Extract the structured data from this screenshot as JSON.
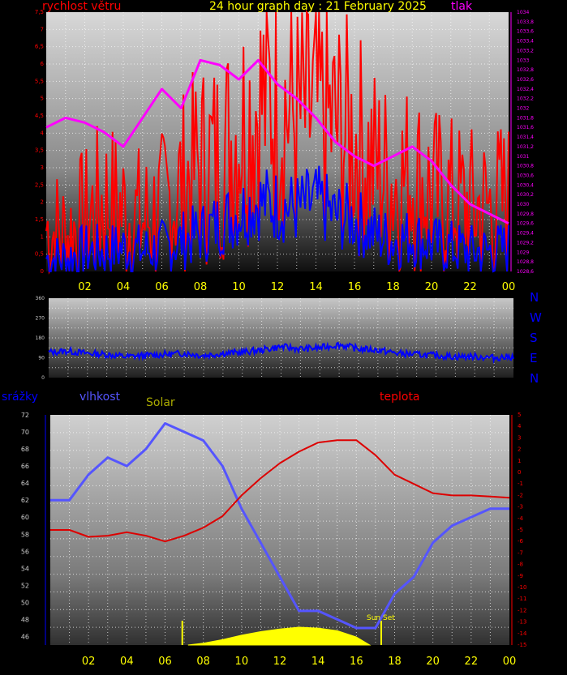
{
  "header": {
    "left_label": "rychlost větru",
    "title": "24 hour graph day : 21 February 2025",
    "right_label": "tlak"
  },
  "compass": [
    "N",
    "W",
    "S",
    "E",
    "N"
  ],
  "bottom_labels": {
    "precip": "srážky",
    "humidity": "vlhkost",
    "solar": "Solar",
    "temp": "teplota",
    "sunset": "Sun Set"
  },
  "colors": {
    "wind": "#ff0000",
    "gust": "#0000ff",
    "pressure": "#ff00ff",
    "direction": "#0000ff",
    "humidity": "#5555ff",
    "temperature": "#dd0000",
    "solar": "#ffff00",
    "sunset_marker": "#ffff00",
    "hour_labels": "#ffff00",
    "left_axis": "#ff0000",
    "right_axis_pressure": "#ff00ff",
    "right_axis_temp": "#ff0000"
  },
  "chart_data": [
    {
      "type": "line",
      "id": "wind_pressure",
      "x_tick_labels": [
        "02",
        "04",
        "06",
        "08",
        "10",
        "12",
        "14",
        "16",
        "18",
        "20",
        "22",
        "00"
      ],
      "y_left_ticks": [
        "0",
        "0,5",
        "1",
        "1,5",
        "2",
        "2,5",
        "3",
        "3,5",
        "4",
        "4,5",
        "5",
        "5,5",
        "6",
        "6,5",
        "7",
        "7,5"
      ],
      "y_left_range": [
        0,
        7.5
      ],
      "y_right_ticks": [
        "1028,6",
        "1028,8",
        "1029",
        "1029,2",
        "1029,4",
        "1029,6",
        "1029,8",
        "1030",
        "1030,2",
        "1030,4",
        "1030,6",
        "1030,8",
        "1031",
        "1031,2",
        "1031,4",
        "1031,6",
        "1031,8",
        "1032",
        "1032,2",
        "1032,4",
        "1032,6",
        "1032,8",
        "1033",
        "1033,2",
        "1033,4",
        "1033,6",
        "1033,8",
        "1034"
      ],
      "y_right_range": [
        1028.6,
        1034
      ],
      "grid": true,
      "series": [
        {
          "name": "rychlost větru",
          "axis": "left",
          "x": [
            0,
            1,
            2,
            3,
            4,
            5,
            6,
            7,
            8,
            9,
            10,
            11,
            12,
            13,
            14,
            15,
            16,
            17,
            18,
            19,
            20,
            21,
            22,
            23,
            24
          ],
          "values": [
            1.0,
            0.8,
            1.2,
            1.8,
            1.5,
            1.2,
            1.5,
            2.2,
            2.8,
            3.0,
            3.8,
            4.5,
            4.6,
            4.0,
            4.2,
            3.8,
            3.5,
            2.8,
            2.3,
            2.5,
            2.0,
            1.8,
            1.6,
            1.6,
            1.8
          ]
        },
        {
          "name": "gust",
          "axis": "left",
          "x": [
            0,
            1,
            2,
            3,
            4,
            5,
            6,
            7,
            8,
            9,
            10,
            11,
            12,
            13,
            14,
            15,
            16,
            17,
            18,
            19,
            20,
            21,
            22,
            23,
            24
          ],
          "values": [
            0.3,
            0.3,
            0.5,
            0.5,
            0.6,
            0.5,
            0.6,
            0.8,
            1.0,
            1.3,
            1.6,
            1.9,
            1.8,
            1.7,
            1.9,
            1.5,
            1.4,
            1.0,
            0.8,
            0.9,
            0.7,
            0.6,
            0.5,
            0.5,
            0.6
          ]
        },
        {
          "name": "tlak",
          "axis": "right",
          "x": [
            0,
            1,
            2,
            3,
            4,
            5,
            6,
            7,
            8,
            9,
            10,
            11,
            12,
            13,
            14,
            15,
            16,
            17,
            18,
            19,
            20,
            21,
            22,
            23,
            24
          ],
          "values": [
            1031.6,
            1031.8,
            1031.7,
            1031.5,
            1031.2,
            1031.8,
            1032.4,
            1032.0,
            1033.0,
            1032.9,
            1032.6,
            1033.0,
            1032.5,
            1032.2,
            1031.8,
            1031.3,
            1031.0,
            1030.8,
            1031.0,
            1031.2,
            1030.9,
            1030.4,
            1030.0,
            1029.8,
            1029.6
          ]
        }
      ]
    },
    {
      "type": "line",
      "id": "wind_direction",
      "x_tick_labels": [],
      "y_ticks": [
        "0",
        "90",
        "180",
        "270",
        "360"
      ],
      "y_range": [
        0,
        360
      ],
      "grid": true,
      "series": [
        {
          "name": "direction",
          "x": [
            0,
            1,
            2,
            3,
            4,
            5,
            6,
            7,
            8,
            9,
            10,
            11,
            12,
            13,
            14,
            15,
            16,
            17,
            18,
            19,
            20,
            21,
            22,
            23,
            24
          ],
          "values": [
            115,
            120,
            110,
            105,
            95,
            100,
            105,
            110,
            100,
            110,
            115,
            125,
            140,
            130,
            135,
            150,
            130,
            125,
            110,
            105,
            100,
            95,
            95,
            90,
            95
          ]
        }
      ]
    },
    {
      "type": "line",
      "id": "humidity_temp",
      "x_tick_labels": [
        "02",
        "04",
        "06",
        "08",
        "10",
        "12",
        "14",
        "16",
        "18",
        "20",
        "22",
        "00"
      ],
      "y_left_ticks": [
        "46",
        "48",
        "50",
        "52",
        "54",
        "56",
        "58",
        "60",
        "62",
        "64",
        "66",
        "68",
        "70",
        "72"
      ],
      "y_left_range": [
        45,
        72
      ],
      "y_right_ticks": [
        "5",
        "4",
        "3",
        "2",
        "1",
        "0",
        "-1",
        "-2",
        "-3",
        "-4",
        "-5",
        "-6",
        "-7",
        "-8",
        "-9",
        "-10",
        "-11",
        "-12",
        "-13",
        "-14",
        "-15"
      ],
      "y_right_range": [
        -15,
        5
      ],
      "grid": true,
      "series": [
        {
          "name": "vlhkost",
          "axis": "left",
          "x": [
            0,
            1,
            2,
            3,
            4,
            5,
            6,
            7,
            8,
            9,
            10,
            11,
            12,
            13,
            14,
            15,
            16,
            17,
            18,
            19,
            20,
            21,
            22,
            23,
            24
          ],
          "values": [
            62,
            62,
            65,
            67,
            66,
            68,
            71,
            70,
            69,
            66,
            61,
            57,
            53,
            49,
            49,
            48,
            47,
            47,
            51,
            53,
            57,
            59,
            60,
            61,
            61
          ]
        },
        {
          "name": "teplota",
          "axis": "right",
          "x": [
            0,
            1,
            2,
            3,
            4,
            5,
            6,
            7,
            8,
            9,
            10,
            11,
            12,
            13,
            14,
            15,
            16,
            17,
            18,
            19,
            20,
            21,
            22,
            23,
            24
          ],
          "values": [
            -5.0,
            -5.0,
            -5.6,
            -5.5,
            -5.2,
            -5.5,
            -6.0,
            -5.5,
            -4.8,
            -3.8,
            -2.0,
            -0.5,
            0.8,
            1.8,
            2.6,
            2.8,
            2.8,
            1.5,
            -0.2,
            -1.0,
            -1.8,
            -2.0,
            -2.0,
            -2.1,
            -2.2
          ]
        },
        {
          "name": "Solar",
          "axis": "none",
          "x": [
            7.2,
            8,
            9,
            10,
            11,
            12,
            13,
            14,
            15,
            16,
            16.7
          ],
          "values": [
            0,
            0.1,
            0.3,
            0.55,
            0.75,
            0.9,
            1.0,
            0.95,
            0.8,
            0.45,
            0
          ]
        }
      ],
      "markers": [
        {
          "name": "sunrise",
          "x": 6.9
        },
        {
          "name": "Sun Set",
          "x": 17.3
        }
      ]
    }
  ]
}
